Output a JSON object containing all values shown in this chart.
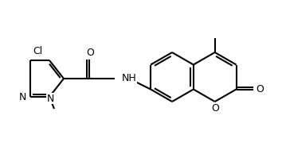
{
  "background_color": "#ffffff",
  "line_color": "#000000",
  "line_width": 1.5,
  "font_size": 9,
  "atoms": {
    "Cl": {
      "label": "Cl"
    },
    "N": {
      "label": "N"
    },
    "O_carbonyl": {
      "label": "O"
    },
    "O_ring": {
      "label": "O"
    },
    "NH": {
      "label": "NH"
    },
    "CH3_pyrazole": {
      "label": ""
    },
    "CH3_coumarin": {
      "label": ""
    }
  }
}
